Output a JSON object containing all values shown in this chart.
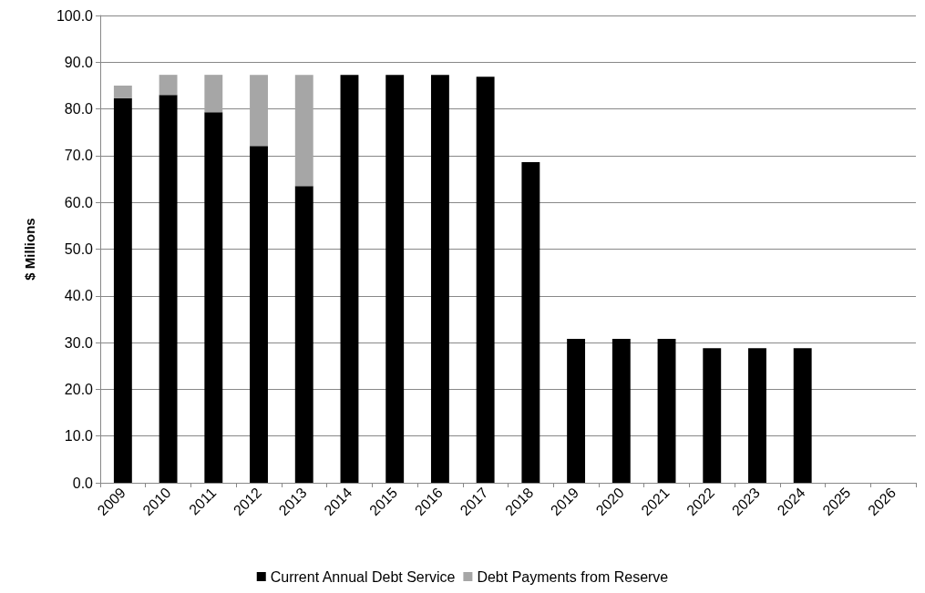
{
  "chart_data": {
    "type": "bar",
    "stacked": true,
    "ylabel": "$ Millions",
    "categories": [
      "2009",
      "2010",
      "2011",
      "2012",
      "2013",
      "2014",
      "2015",
      "2016",
      "2017",
      "2018",
      "2019",
      "2020",
      "2021",
      "2022",
      "2023",
      "2024",
      "2025",
      "2026"
    ],
    "series": [
      {
        "name": "Current Annual Debt Service",
        "color": "#000000",
        "values": [
          82.3,
          83.0,
          79.3,
          72.1,
          63.5,
          87.3,
          87.3,
          87.3,
          86.9,
          68.6,
          30.8,
          30.8,
          30.8,
          28.8,
          28.8,
          28.8,
          null,
          null
        ]
      },
      {
        "name": "Debt Payments from Reserve",
        "color": "#a6a6a6",
        "values": [
          2.7,
          4.3,
          8.0,
          15.2,
          23.8,
          null,
          null,
          null,
          null,
          null,
          null,
          null,
          null,
          null,
          null,
          null,
          null,
          null
        ]
      }
    ],
    "ylim": [
      0,
      100
    ],
    "yticks": [
      {
        "value": 0,
        "label": "0.0"
      },
      {
        "value": 10,
        "label": "10.0"
      },
      {
        "value": 20,
        "label": "20.0"
      },
      {
        "value": 30,
        "label": "30.0"
      },
      {
        "value": 40,
        "label": "40.0"
      },
      {
        "value": 50,
        "label": "50.0"
      },
      {
        "value": 60,
        "label": "60.0"
      },
      {
        "value": 70,
        "label": "70.0"
      },
      {
        "value": 80,
        "label": "80.0"
      },
      {
        "value": 90,
        "label": "90.0"
      },
      {
        "value": 100,
        "label": "100.0"
      }
    ],
    "grid": "y",
    "legend": "bottom"
  }
}
